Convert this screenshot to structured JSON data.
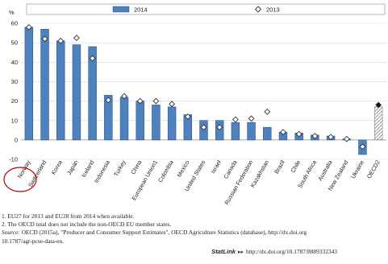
{
  "chart_data": {
    "type": "bar",
    "ylabel": "%",
    "ylim": [
      -10,
      60
    ],
    "yticks": [
      -10,
      0,
      10,
      20,
      30,
      40,
      50,
      60
    ],
    "grid": true,
    "legend_placement": "top",
    "categories": [
      "Norway",
      "Switzerland",
      "Korea",
      "Japan",
      "Iceland",
      "Indonesia",
      "Turkey",
      "China",
      "European Union",
      "Colombia",
      "Mexico",
      "United States",
      "Israel",
      "Canada",
      "Russian Federation",
      "Kazakhstan",
      "Brazil",
      "Chile",
      "South Africa",
      "Australia",
      "New Zealand",
      "Ukraine",
      "OECD"
    ],
    "category_note_marks": [
      "",
      "",
      "",
      "",
      "",
      "",
      "",
      "",
      "1",
      "",
      "",
      "",
      "",
      "",
      "",
      "",
      "",
      "",
      "",
      "",
      "",
      "",
      "2"
    ],
    "series": [
      {
        "name": "2014",
        "style": "bar",
        "color": "#4f81bd",
        "values": [
          58,
          57,
          51,
          49,
          48,
          23,
          22,
          20,
          18,
          17,
          13,
          10,
          10,
          9,
          9,
          6.5,
          4,
          3.5,
          2.5,
          2,
          0.5,
          -7.5,
          17
        ]
      },
      {
        "name": "2013",
        "style": "diamond-marker",
        "values": [
          58,
          52,
          51,
          52.5,
          42,
          20.5,
          22.5,
          20,
          20,
          18.5,
          12,
          6.5,
          6.5,
          10.5,
          11,
          14.5,
          4,
          3,
          2,
          1.5,
          0.5,
          -3.5,
          18
        ]
      }
    ],
    "annotations": [
      "Norway circled in red"
    ]
  },
  "legend": {
    "item1": "2014",
    "item2": "2013"
  },
  "notes": {
    "note1": "1.  EU27 for 2013 and EU28 from 2014 when available.",
    "note2": "2.  The OECD total does not include the non-OECD EU member states.",
    "source_label": "Source:",
    "source_text": " OECD (2015a), \"Producer and Consumer Support Estimates\", OECD Agriculture Statistics (database), http://dx.doi.org",
    "source_cont": "10.1787/agr-pcse-data-en."
  },
  "statlink": {
    "logo": "StatLink",
    "url": "http://dx.doi.org/10.1787/8889332343"
  },
  "colors": {
    "bar": "#4f81bd",
    "bar_edge": "#2f5597",
    "oecd_bar": "#7f7f7f",
    "highlight": "#c00000",
    "grid": "#d9d9d9"
  }
}
